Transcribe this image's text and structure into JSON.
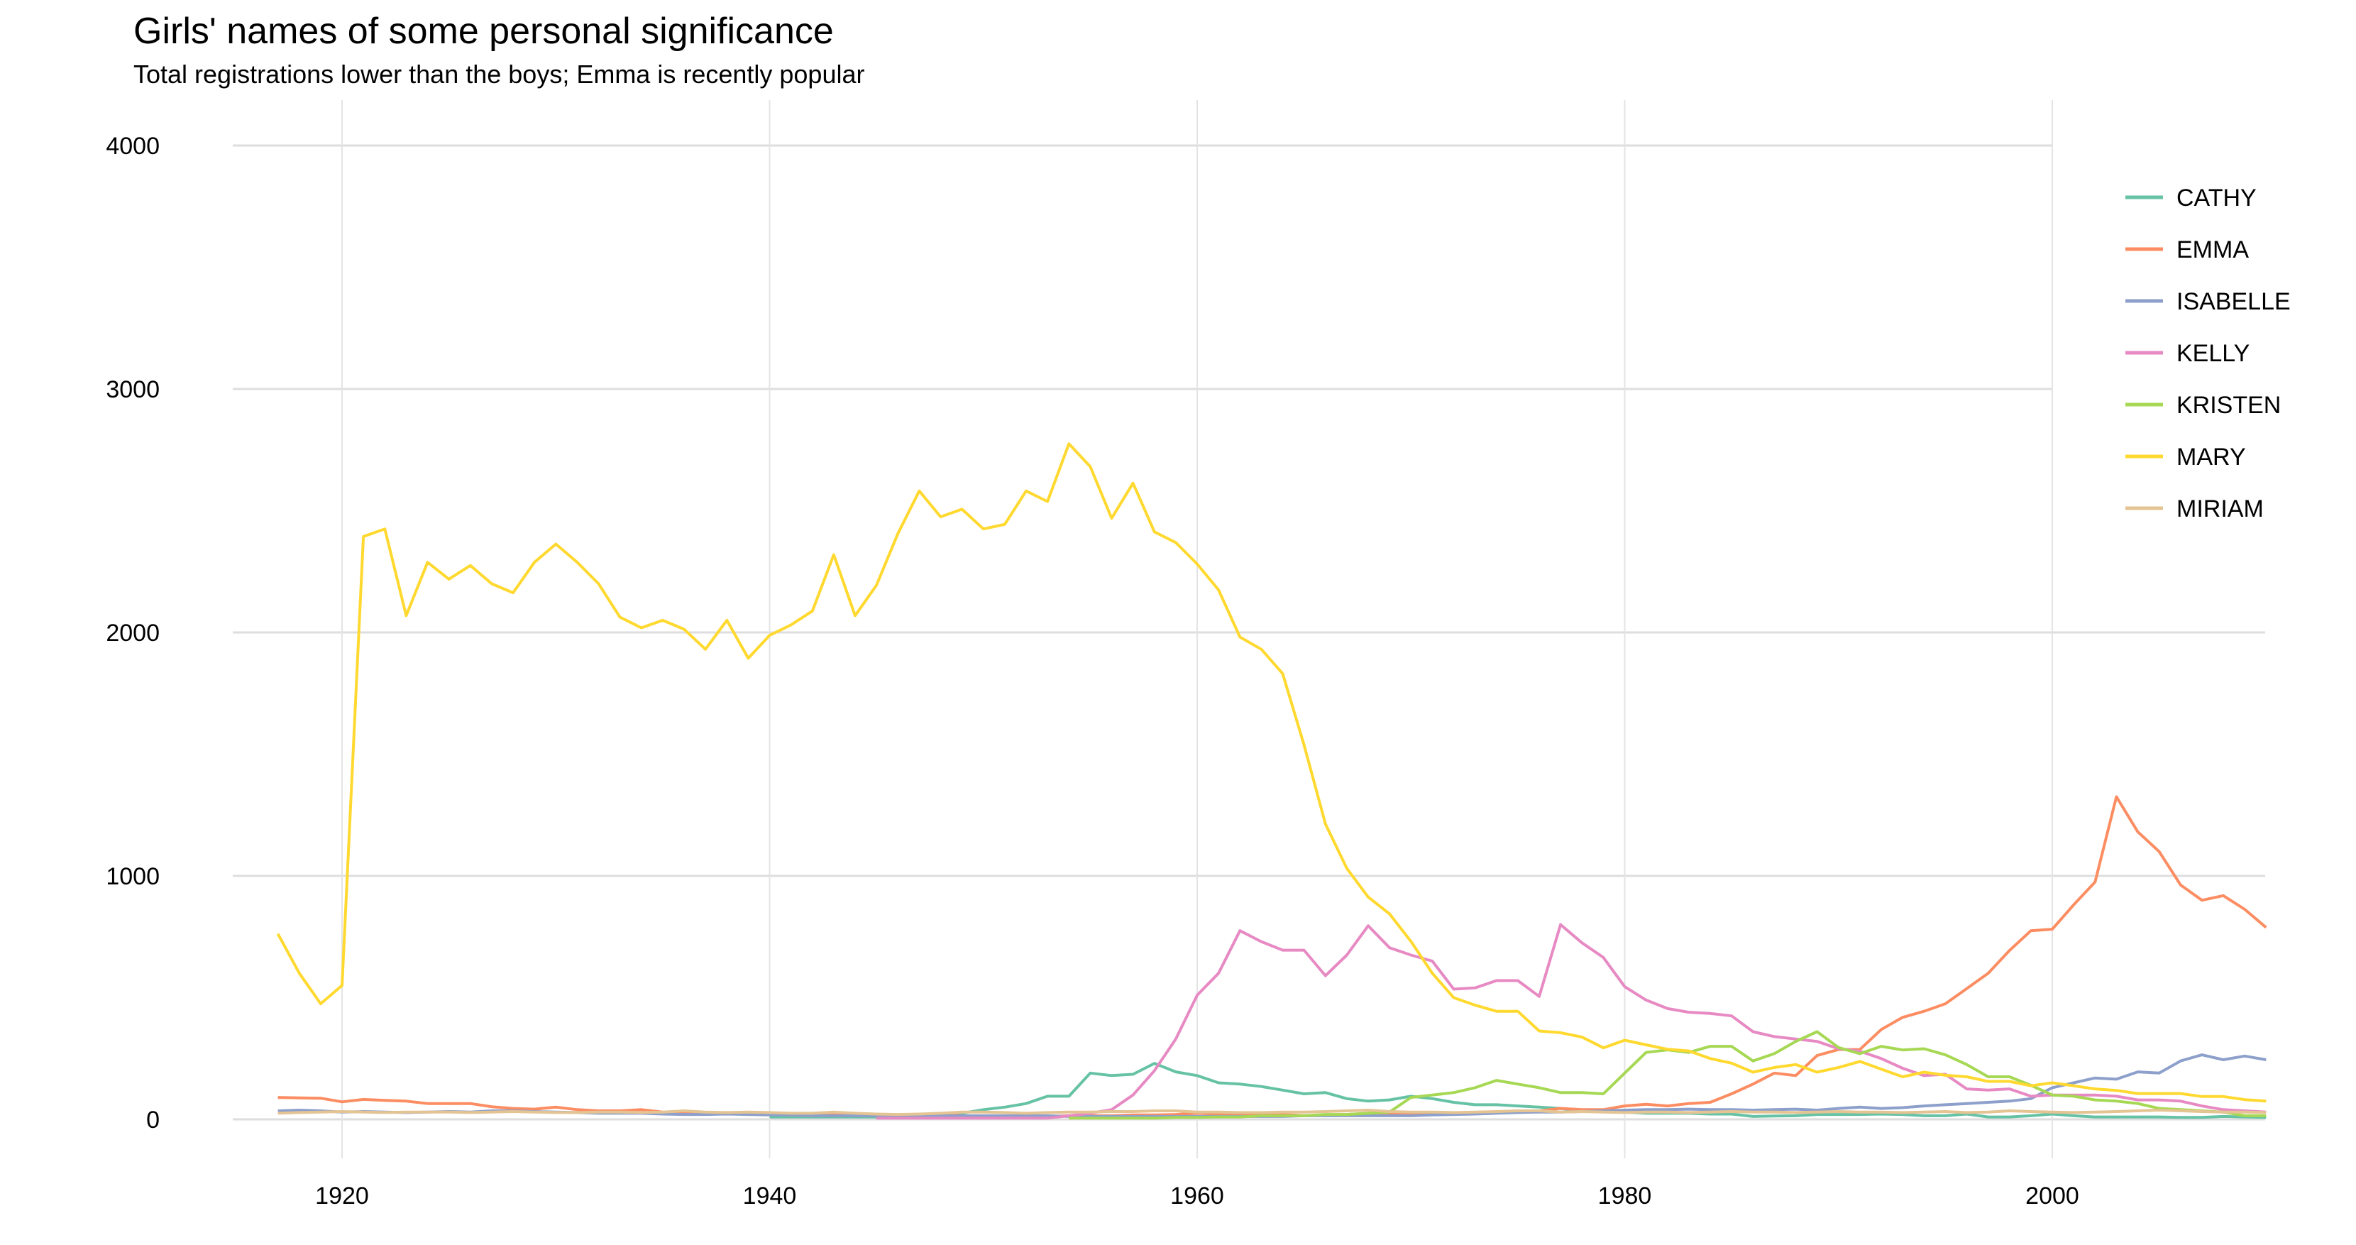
{
  "chart_data": {
    "type": "line",
    "title": "Girls' names of some personal significance",
    "subtitle": "Total registrations lower than the boys; Emma is recently popular",
    "xlabel": "",
    "ylabel": "",
    "xlim": [
      1917,
      2010
    ],
    "ylim": [
      0,
      4000
    ],
    "x_ticks": [
      1920,
      1940,
      1960,
      1980,
      2000
    ],
    "y_ticks": [
      0,
      1000,
      2000,
      3000,
      4000
    ],
    "grid": true,
    "legend_position": "right",
    "x_start": 1917,
    "series": [
      {
        "name": "CATHY",
        "color": "#66C2A5",
        "values": [
          null,
          null,
          null,
          null,
          null,
          null,
          null,
          null,
          null,
          null,
          null,
          null,
          null,
          null,
          null,
          null,
          null,
          null,
          null,
          null,
          null,
          null,
          null,
          10,
          10,
          10,
          10,
          10,
          10,
          10,
          10,
          10,
          25,
          40,
          50,
          65,
          95,
          95,
          190,
          180,
          185,
          230,
          195,
          180,
          150,
          145,
          135,
          120,
          105,
          110,
          85,
          75,
          80,
          95,
          85,
          70,
          60,
          60,
          55,
          50,
          45,
          35,
          35,
          30,
          25,
          25,
          25,
          22,
          22,
          12,
          14,
          15,
          20,
          20,
          20,
          22,
          20,
          15,
          15,
          22,
          10,
          10,
          15,
          22,
          15,
          10,
          10,
          10,
          10,
          8,
          8,
          12,
          10,
          8
        ]
      },
      {
        "name": "EMMA",
        "color": "#FC8D62",
        "values": [
          90,
          88,
          87,
          72,
          82,
          78,
          75,
          65,
          65,
          65,
          52,
          45,
          42,
          50,
          40,
          35,
          35,
          40,
          30,
          25,
          25,
          28,
          22,
          20,
          18,
          15,
          20,
          18,
          15,
          15,
          18,
          25,
          15,
          12,
          12,
          12,
          12,
          15,
          15,
          15,
          18,
          18,
          20,
          25,
          22,
          20,
          22,
          20,
          15,
          18,
          20,
          25,
          22,
          20,
          22,
          25,
          28,
          30,
          35,
          35,
          45,
          40,
          40,
          55,
          62,
          55,
          65,
          70,
          105,
          145,
          190,
          180,
          262,
          287,
          287,
          369,
          419,
          444,
          475,
          537,
          600,
          694,
          775,
          781,
          881,
          975,
          1325,
          1181,
          1100,
          963,
          900,
          919,
          863,
          788
        ]
      },
      {
        "name": "ISABELLE",
        "color": "#8DA0CB",
        "values": [
          35,
          38,
          35,
          30,
          32,
          30,
          28,
          30,
          32,
          30,
          35,
          35,
          32,
          30,
          28,
          25,
          25,
          25,
          22,
          20,
          20,
          22,
          20,
          18,
          18,
          15,
          15,
          15,
          15,
          15,
          15,
          15,
          15,
          15,
          15,
          15,
          15,
          12,
          12,
          12,
          12,
          12,
          12,
          12,
          12,
          12,
          12,
          12,
          15,
          15,
          15,
          15,
          15,
          15,
          18,
          20,
          22,
          25,
          28,
          30,
          30,
          32,
          35,
          38,
          40,
          40,
          42,
          40,
          40,
          38,
          40,
          42,
          38,
          45,
          50,
          45,
          48,
          55,
          60,
          65,
          70,
          75,
          85,
          130,
          150,
          170,
          165,
          195,
          190,
          240,
          265,
          245,
          260,
          245
        ]
      },
      {
        "name": "KELLY",
        "color": "#E78AC3",
        "values": [
          null,
          null,
          null,
          null,
          null,
          null,
          null,
          null,
          null,
          null,
          null,
          null,
          null,
          null,
          null,
          null,
          null,
          null,
          null,
          null,
          null,
          null,
          null,
          null,
          null,
          null,
          null,
          null,
          5,
          5,
          5,
          5,
          5,
          5,
          5,
          5,
          5,
          15,
          25,
          40,
          100,
          200,
          330,
          510,
          600,
          775,
          730,
          695,
          695,
          590,
          675,
          795,
          705,
          675,
          650,
          535,
          540,
          570,
          570,
          505,
          800,
          725,
          665,
          545,
          490,
          455,
          440,
          435,
          425,
          360,
          340,
          330,
          320,
          290,
          280,
          250,
          210,
          180,
          185,
          125,
          120,
          125,
          95,
          100,
          100,
          100,
          95,
          80,
          80,
          75,
          55,
          40,
          35,
          30
        ]
      },
      {
        "name": "KRISTEN",
        "color": "#A6D854",
        "values": [
          null,
          null,
          null,
          null,
          null,
          null,
          null,
          null,
          null,
          null,
          null,
          null,
          null,
          null,
          null,
          null,
          null,
          null,
          null,
          null,
          null,
          null,
          null,
          null,
          null,
          null,
          null,
          null,
          null,
          null,
          null,
          null,
          null,
          null,
          null,
          null,
          null,
          5,
          5,
          5,
          5,
          5,
          8,
          8,
          10,
          10,
          15,
          15,
          15,
          20,
          20,
          25,
          30,
          90,
          100,
          110,
          130,
          160,
          145,
          130,
          110,
          110,
          105,
          190,
          275,
          285,
          275,
          300,
          300,
          240,
          270,
          320,
          360,
          295,
          270,
          300,
          285,
          290,
          265,
          225,
          175,
          175,
          140,
          100,
          95,
          80,
          75,
          65,
          45,
          40,
          35,
          30,
          15,
          15
        ]
      },
      {
        "name": "MARY",
        "color": "#FFD92F",
        "values": [
          762,
          600,
          475,
          550,
          2394,
          2425,
          2069,
          2288,
          2219,
          2275,
          2200,
          2163,
          2288,
          2363,
          2288,
          2200,
          2063,
          2019,
          2050,
          2013,
          1931,
          2050,
          1894,
          1988,
          2031,
          2088,
          2319,
          2069,
          2194,
          2406,
          2581,
          2475,
          2506,
          2425,
          2444,
          2581,
          2538,
          2775,
          2681,
          2469,
          2613,
          2413,
          2369,
          2281,
          2175,
          1981,
          1931,
          1831,
          1538,
          1213,
          1031,
          913,
          844,
          731,
          600,
          500,
          469,
          444,
          444,
          363,
          356,
          338,
          294,
          325,
          306,
          288,
          281,
          250,
          231,
          194,
          213,
          225,
          194,
          213,
          238,
          206,
          175,
          194,
          181,
          175,
          156,
          156,
          138,
          150,
          138,
          125,
          119,
          106,
          106,
          106,
          94,
          94,
          81,
          75
        ]
      },
      {
        "name": "MIRIAM",
        "color": "#E5C494",
        "values": [
          25,
          28,
          30,
          32,
          30,
          28,
          30,
          30,
          30,
          28,
          30,
          32,
          30,
          28,
          28,
          30,
          30,
          28,
          30,
          35,
          30,
          28,
          30,
          28,
          25,
          25,
          30,
          25,
          22,
          20,
          22,
          25,
          30,
          30,
          28,
          25,
          28,
          30,
          30,
          32,
          32,
          35,
          35,
          30,
          30,
          28,
          28,
          30,
          30,
          32,
          35,
          38,
          32,
          30,
          30,
          28,
          30,
          32,
          35,
          35,
          30,
          32,
          30,
          28,
          30,
          30,
          28,
          30,
          32,
          30,
          30,
          28,
          30,
          32,
          30,
          30,
          28,
          30,
          32,
          28,
          30,
          35,
          32,
          30,
          28,
          30,
          32,
          35,
          38,
          35,
          32,
          30,
          30,
          28
        ]
      }
    ]
  }
}
